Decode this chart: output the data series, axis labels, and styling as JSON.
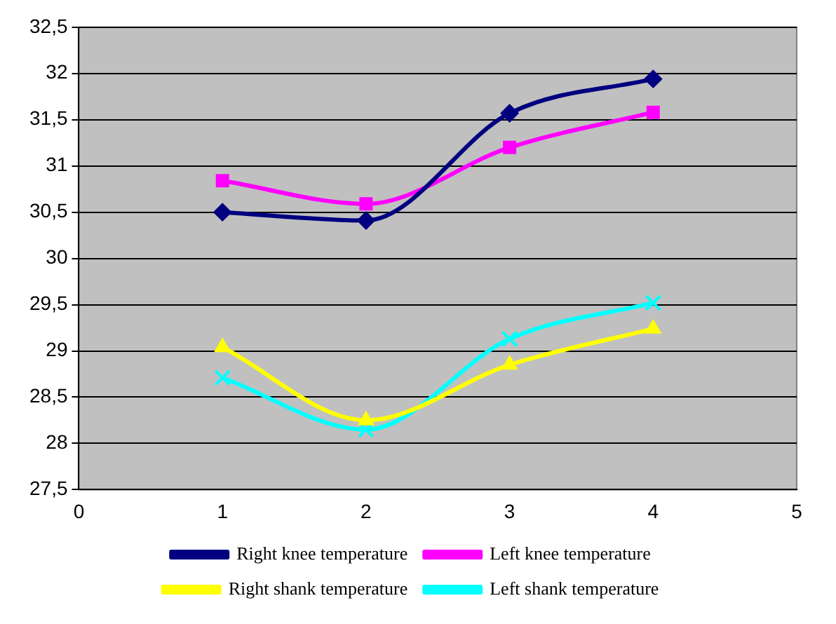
{
  "chart_data": {
    "type": "line",
    "x": [
      1,
      2,
      3,
      4
    ],
    "xlim": [
      0,
      5
    ],
    "xticks": [
      0,
      1,
      2,
      3,
      4,
      5
    ],
    "ylim": [
      27.5,
      32.5
    ],
    "yticks": [
      {
        "value": 27.5,
        "label": "27,5"
      },
      28,
      {
        "value": 28.5,
        "label": "28,5"
      },
      29,
      {
        "value": 29.5,
        "label": "29,5"
      },
      30,
      {
        "value": 30.5,
        "label": "30,5"
      },
      31,
      {
        "value": 31.5,
        "label": "31,5"
      },
      32,
      {
        "value": 32.5,
        "label": "32,5"
      }
    ],
    "grid": "y",
    "legend": "bottom",
    "series": [
      {
        "name": "Right knee temperature",
        "color": "#000080",
        "marker": "diamond",
        "values": [
          30.5,
          30.41,
          31.57,
          31.94
        ]
      },
      {
        "name": "Left knee temperature",
        "color": "#ff00ff",
        "marker": "square",
        "values": [
          30.84,
          30.59,
          31.2,
          31.58
        ]
      },
      {
        "name": "Right shank temperature",
        "color": "#ffff00",
        "marker": "triangle",
        "values": [
          29.04,
          28.25,
          28.85,
          29.24
        ]
      },
      {
        "name": "Left shank temperature",
        "color": "#00ffff",
        "marker": "cross",
        "values": [
          28.71,
          28.15,
          29.13,
          29.52
        ]
      }
    ]
  }
}
